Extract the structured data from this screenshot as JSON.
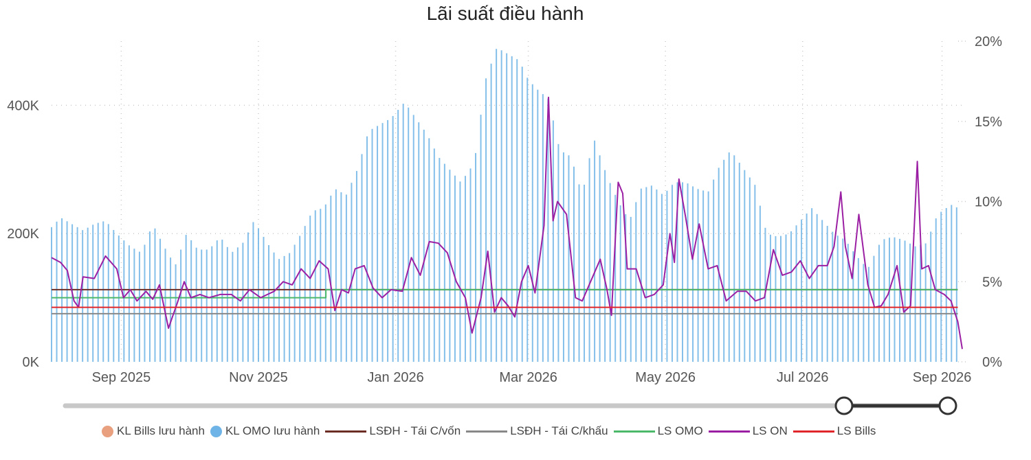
{
  "chart_data": {
    "type": "bar+line",
    "title": "Lãi suất điều hành",
    "x_ticks": [
      "Sep 2025",
      "Nov 2025",
      "Jan 2026",
      "Mar 2026",
      "May 2026",
      "Jul 2026",
      "Sep 2026"
    ],
    "x_range": [
      "2025-08-01",
      "2026-09-10"
    ],
    "y_left": {
      "ticks": [
        "0K",
        "200K",
        "400K"
      ],
      "range": [
        0,
        500000
      ]
    },
    "y_right": {
      "ticks": [
        "0%",
        "5%",
        "10%",
        "15%",
        "20%"
      ],
      "range": [
        0,
        20
      ]
    },
    "grid": "dotted",
    "legend_position": "bottom",
    "series": [
      {
        "name": "KL Bills lưu hành",
        "type": "bar",
        "color": "#e8a07f",
        "points": []
      },
      {
        "name": "KL OMO lưu hành",
        "type": "bar",
        "color": "#6fb4e6",
        "axis": "left",
        "points": [
          [
            "2025-08-01",
            210000
          ],
          [
            "2025-08-05",
            225000
          ],
          [
            "2025-08-10",
            215000
          ],
          [
            "2025-08-15",
            205000
          ],
          [
            "2025-08-20",
            215000
          ],
          [
            "2025-08-25",
            220000
          ],
          [
            "2025-08-30",
            200000
          ],
          [
            "2025-09-05",
            180000
          ],
          [
            "2025-09-10",
            170000
          ],
          [
            "2025-09-15",
            215000
          ],
          [
            "2025-09-20",
            180000
          ],
          [
            "2025-09-25",
            150000
          ],
          [
            "2025-09-30",
            200000
          ],
          [
            "2025-10-05",
            175000
          ],
          [
            "2025-10-10",
            175000
          ],
          [
            "2025-10-15",
            195000
          ],
          [
            "2025-10-20",
            170000
          ],
          [
            "2025-10-25",
            185000
          ],
          [
            "2025-10-30",
            220000
          ],
          [
            "2025-11-05",
            185000
          ],
          [
            "2025-11-10",
            160000
          ],
          [
            "2025-11-15",
            170000
          ],
          [
            "2025-11-20",
            200000
          ],
          [
            "2025-11-25",
            235000
          ],
          [
            "2025-11-30",
            240000
          ],
          [
            "2025-12-05",
            270000
          ],
          [
            "2025-12-10",
            260000
          ],
          [
            "2025-12-15",
            300000
          ],
          [
            "2025-12-20",
            360000
          ],
          [
            "2025-12-25",
            370000
          ],
          [
            "2025-12-30",
            380000
          ],
          [
            "2026-01-05",
            405000
          ],
          [
            "2026-01-10",
            380000
          ],
          [
            "2026-01-15",
            355000
          ],
          [
            "2026-01-20",
            320000
          ],
          [
            "2026-01-25",
            300000
          ],
          [
            "2026-01-30",
            280000
          ],
          [
            "2026-02-05",
            310000
          ],
          [
            "2026-02-10",
            440000
          ],
          [
            "2026-02-15",
            490000
          ],
          [
            "2026-02-20",
            480000
          ],
          [
            "2026-02-25",
            470000
          ],
          [
            "2026-03-01",
            440000
          ],
          [
            "2026-03-05",
            425000
          ],
          [
            "2026-03-10",
            410000
          ],
          [
            "2026-03-15",
            330000
          ],
          [
            "2026-03-20",
            320000
          ],
          [
            "2026-03-25",
            260000
          ],
          [
            "2026-03-30",
            350000
          ],
          [
            "2026-04-05",
            290000
          ],
          [
            "2026-04-10",
            250000
          ],
          [
            "2026-04-15",
            220000
          ],
          [
            "2026-04-20",
            270000
          ],
          [
            "2026-04-25",
            275000
          ],
          [
            "2026-04-30",
            260000
          ],
          [
            "2026-05-05",
            280000
          ],
          [
            "2026-05-10",
            280000
          ],
          [
            "2026-05-15",
            270000
          ],
          [
            "2026-05-20",
            265000
          ],
          [
            "2026-05-25",
            305000
          ],
          [
            "2026-05-30",
            330000
          ],
          [
            "2026-06-05",
            300000
          ],
          [
            "2026-06-10",
            275000
          ],
          [
            "2026-06-15",
            200000
          ],
          [
            "2026-06-20",
            195000
          ],
          [
            "2026-06-25",
            200000
          ],
          [
            "2026-06-30",
            220000
          ],
          [
            "2026-07-05",
            240000
          ],
          [
            "2026-07-10",
            220000
          ],
          [
            "2026-07-15",
            200000
          ],
          [
            "2026-07-20",
            190000
          ],
          [
            "2026-07-25",
            165000
          ],
          [
            "2026-07-30",
            145000
          ],
          [
            "2026-08-05",
            190000
          ],
          [
            "2026-08-10",
            195000
          ],
          [
            "2026-08-15",
            190000
          ],
          [
            "2026-08-20",
            180000
          ],
          [
            "2026-08-25",
            185000
          ],
          [
            "2026-08-30",
            230000
          ],
          [
            "2026-09-05",
            245000
          ],
          [
            "2026-09-08",
            240000
          ]
        ]
      },
      {
        "name": "LSĐH - Tái C/vốn",
        "type": "line",
        "color": "#6b2d24",
        "axis": "right",
        "points": [
          [
            "2025-08-01",
            4.5
          ],
          [
            "2025-12-01",
            4.5
          ],
          [
            "2025-12-01",
            4.5
          ],
          [
            "2026-09-08",
            4.5
          ]
        ]
      },
      {
        "name": "LSĐH - Tái C/khấu",
        "type": "line",
        "color": "#888888",
        "axis": "right",
        "points": [
          [
            "2025-08-01",
            3.0
          ],
          [
            "2026-09-08",
            3.0
          ]
        ]
      },
      {
        "name": "LS OMO",
        "type": "line",
        "color": "#4cb86a",
        "axis": "right",
        "points": [
          [
            "2025-08-01",
            4.0
          ],
          [
            "2025-12-01",
            4.0
          ],
          [
            "2025-12-01",
            4.5
          ],
          [
            "2026-09-08",
            4.5
          ]
        ]
      },
      {
        "name": "LS ON",
        "type": "line",
        "color": "#9b1fa3",
        "axis": "right",
        "points": [
          [
            "2025-08-01",
            6.5
          ],
          [
            "2025-08-05",
            6.2
          ],
          [
            "2025-08-08",
            5.7
          ],
          [
            "2025-08-11",
            3.8
          ],
          [
            "2025-08-13",
            3.4
          ],
          [
            "2025-08-15",
            5.3
          ],
          [
            "2025-08-20",
            5.2
          ],
          [
            "2025-08-25",
            6.6
          ],
          [
            "2025-08-30",
            5.8
          ],
          [
            "2025-09-02",
            4.0
          ],
          [
            "2025-09-05",
            4.5
          ],
          [
            "2025-09-08",
            3.8
          ],
          [
            "2025-09-12",
            4.4
          ],
          [
            "2025-09-15",
            3.9
          ],
          [
            "2025-09-18",
            4.8
          ],
          [
            "2025-09-22",
            2.1
          ],
          [
            "2025-09-26",
            3.7
          ],
          [
            "2025-09-29",
            5.0
          ],
          [
            "2025-10-02",
            4.0
          ],
          [
            "2025-10-06",
            4.2
          ],
          [
            "2025-10-10",
            4.0
          ],
          [
            "2025-10-15",
            4.2
          ],
          [
            "2025-10-20",
            4.2
          ],
          [
            "2025-10-24",
            3.8
          ],
          [
            "2025-10-28",
            4.5
          ],
          [
            "2025-11-02",
            4.0
          ],
          [
            "2025-11-05",
            4.2
          ],
          [
            "2025-11-08",
            4.4
          ],
          [
            "2025-11-12",
            5.0
          ],
          [
            "2025-11-16",
            4.8
          ],
          [
            "2025-11-20",
            5.8
          ],
          [
            "2025-11-24",
            5.2
          ],
          [
            "2025-11-28",
            6.3
          ],
          [
            "2025-12-02",
            5.8
          ],
          [
            "2025-12-05",
            3.2
          ],
          [
            "2025-12-08",
            4.5
          ],
          [
            "2025-12-11",
            4.3
          ],
          [
            "2025-12-14",
            5.8
          ],
          [
            "2025-12-18",
            6.0
          ],
          [
            "2025-12-22",
            4.6
          ],
          [
            "2025-12-26",
            4.0
          ],
          [
            "2025-12-30",
            4.5
          ],
          [
            "2026-01-04",
            4.4
          ],
          [
            "2026-01-08",
            6.5
          ],
          [
            "2026-01-12",
            5.4
          ],
          [
            "2026-01-16",
            7.5
          ],
          [
            "2026-01-20",
            7.4
          ],
          [
            "2026-01-24",
            6.8
          ],
          [
            "2026-01-28",
            5.0
          ],
          [
            "2026-02-01",
            4.0
          ],
          [
            "2026-02-04",
            1.8
          ],
          [
            "2026-02-08",
            4.0
          ],
          [
            "2026-02-11",
            6.9
          ],
          [
            "2026-02-14",
            3.1
          ],
          [
            "2026-02-17",
            4.0
          ],
          [
            "2026-02-20",
            3.5
          ],
          [
            "2026-02-23",
            2.8
          ],
          [
            "2026-02-26",
            5.0
          ],
          [
            "2026-03-01",
            6.0
          ],
          [
            "2026-03-04",
            4.3
          ],
          [
            "2026-03-08",
            8.5
          ],
          [
            "2026-03-10",
            16.5
          ],
          [
            "2026-03-12",
            8.8
          ],
          [
            "2026-03-14",
            10.0
          ],
          [
            "2026-03-18",
            9.2
          ],
          [
            "2026-03-22",
            4.0
          ],
          [
            "2026-03-25",
            3.8
          ],
          [
            "2026-04-02",
            6.4
          ],
          [
            "2026-04-05",
            4.5
          ],
          [
            "2026-04-07",
            2.9
          ],
          [
            "2026-04-10",
            11.2
          ],
          [
            "2026-04-12",
            10.5
          ],
          [
            "2026-04-14",
            5.8
          ],
          [
            "2026-04-18",
            5.8
          ],
          [
            "2026-04-22",
            4.0
          ],
          [
            "2026-04-26",
            4.2
          ],
          [
            "2026-04-30",
            4.8
          ],
          [
            "2026-05-03",
            8.0
          ],
          [
            "2026-05-05",
            6.2
          ],
          [
            "2026-05-07",
            11.4
          ],
          [
            "2026-05-10",
            9.0
          ],
          [
            "2026-05-13",
            6.4
          ],
          [
            "2026-05-16",
            8.6
          ],
          [
            "2026-05-20",
            5.8
          ],
          [
            "2026-05-24",
            6.0
          ],
          [
            "2026-05-28",
            3.8
          ],
          [
            "2026-06-02",
            4.4
          ],
          [
            "2026-06-06",
            4.4
          ],
          [
            "2026-06-10",
            3.8
          ],
          [
            "2026-06-14",
            4.0
          ],
          [
            "2026-06-18",
            7.0
          ],
          [
            "2026-06-22",
            5.4
          ],
          [
            "2026-06-26",
            5.6
          ],
          [
            "2026-06-30",
            6.3
          ],
          [
            "2026-07-04",
            5.2
          ],
          [
            "2026-07-08",
            6.0
          ],
          [
            "2026-07-12",
            6.0
          ],
          [
            "2026-07-15",
            7.2
          ],
          [
            "2026-07-18",
            10.6
          ],
          [
            "2026-07-20",
            7.2
          ],
          [
            "2026-07-23",
            5.2
          ],
          [
            "2026-07-26",
            9.2
          ],
          [
            "2026-07-30",
            4.8
          ],
          [
            "2026-08-02",
            3.4
          ],
          [
            "2026-08-05",
            3.5
          ],
          [
            "2026-08-08",
            4.2
          ],
          [
            "2026-08-12",
            6.0
          ],
          [
            "2026-08-15",
            3.1
          ],
          [
            "2026-08-18",
            3.5
          ],
          [
            "2026-08-21",
            12.5
          ],
          [
            "2026-08-23",
            5.8
          ],
          [
            "2026-08-26",
            6.0
          ],
          [
            "2026-08-29",
            4.5
          ],
          [
            "2026-09-02",
            4.2
          ],
          [
            "2026-09-05",
            3.8
          ],
          [
            "2026-09-08",
            2.5
          ],
          [
            "2026-09-10",
            0.8
          ]
        ]
      },
      {
        "name": "LS Bills",
        "type": "line",
        "color": "#e0262b",
        "axis": "right",
        "points": [
          [
            "2025-08-01",
            3.4
          ],
          [
            "2026-09-08",
            3.4
          ]
        ]
      }
    ]
  },
  "slider": {
    "range_start_label": "",
    "range_end_label": ""
  },
  "colors": {
    "track": "#c8c8c8",
    "range": "#333333",
    "handle_fill": "#ffffff",
    "grid": "#c8c8c8"
  }
}
